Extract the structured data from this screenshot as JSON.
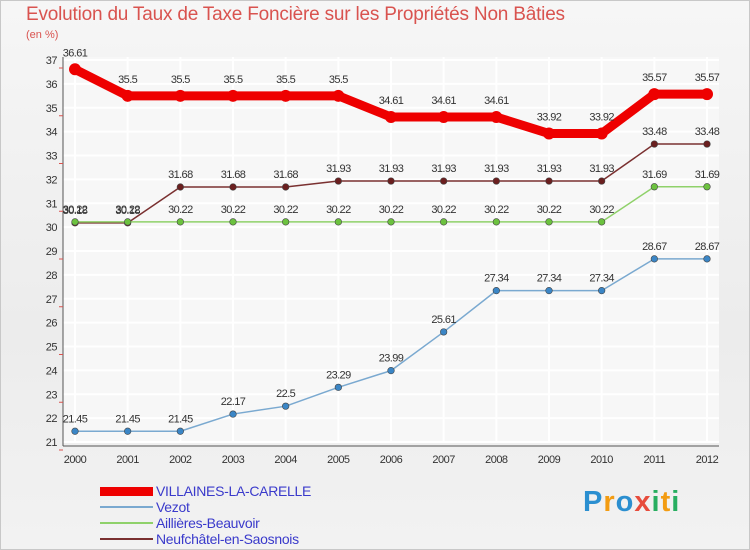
{
  "header": {
    "title": "Evolution du Taux de Taxe Foncière sur les Propriétés Non Bâties",
    "unit": "(en %)"
  },
  "logo": {
    "text": "Proxiti",
    "letters": [
      {
        "ch": "P",
        "color": "#2b8fd0"
      },
      {
        "ch": "r",
        "color": "#f39c12"
      },
      {
        "ch": "o",
        "color": "#2b8fd0"
      },
      {
        "ch": "x",
        "color": "#e74c3c"
      },
      {
        "ch": "i",
        "color": "#27ae60"
      },
      {
        "ch": "t",
        "color": "#f39c12"
      },
      {
        "ch": "i",
        "color": "#27ae60"
      }
    ]
  },
  "chart_data": {
    "type": "line",
    "title": "Evolution du Taux de Taxe Foncière sur les Propriétés Non Bâties",
    "ylabel": "(en %)",
    "xlabel": "",
    "categories": [
      "2000",
      "2001",
      "2002",
      "2003",
      "2004",
      "2005",
      "2006",
      "2007",
      "2008",
      "2009",
      "2010",
      "2011",
      "2012"
    ],
    "ylim": [
      21,
      37
    ],
    "yticks": [
      21,
      22,
      23,
      24,
      25,
      26,
      27,
      28,
      29,
      30,
      31,
      32,
      33,
      34,
      35,
      36,
      37
    ],
    "grid": true,
    "series": [
      {
        "name": "VILLAINES-LA-CARELLE",
        "color": "#ee0000",
        "marker": "#ee0000",
        "weight": "thick",
        "values": [
          36.61,
          35.5,
          35.5,
          35.5,
          35.5,
          35.5,
          34.61,
          34.61,
          34.61,
          33.92,
          33.92,
          35.57,
          35.57
        ],
        "labels": [
          "36.61",
          "35.5",
          "35.5",
          "35.5",
          "35.5",
          "35.5",
          "34.61",
          "34.61",
          "34.61",
          "33.92",
          "33.92",
          "35.57",
          "35.57"
        ]
      },
      {
        "name": "Vezot",
        "color": "#7aa9d0",
        "marker": "#3b86c6",
        "weight": "thin",
        "values": [
          21.45,
          21.45,
          21.45,
          22.17,
          22.5,
          23.29,
          23.99,
          25.61,
          27.34,
          27.34,
          27.34,
          28.67,
          28.67
        ],
        "labels": [
          "21.45",
          "21.45",
          "21.45",
          "22.17",
          "22.5",
          "23.29",
          "23.99",
          "25.61",
          "27.34",
          "27.34",
          "27.34",
          "28.67",
          "28.67"
        ]
      },
      {
        "name": "Aillières-Beauvoir",
        "color": "#8fd16a",
        "marker": "#6cc23f",
        "weight": "thin",
        "values": [
          30.22,
          30.22,
          30.22,
          30.22,
          30.22,
          30.22,
          30.22,
          30.22,
          30.22,
          30.22,
          30.22,
          31.69,
          31.69
        ],
        "labels": [
          "30.22",
          "30.22",
          "30.22",
          "30.22",
          "30.22",
          "30.22",
          "30.22",
          "30.22",
          "30.22",
          "30.22",
          "30.22",
          "31.69",
          "31.69"
        ]
      },
      {
        "name": "Neufchâtel-en-Saosnois",
        "color": "#7a3030",
        "marker": "#6b1f1f",
        "weight": "thin",
        "values": [
          30.18,
          30.18,
          31.68,
          31.68,
          31.68,
          31.93,
          31.93,
          31.93,
          31.93,
          31.93,
          31.93,
          33.48,
          33.48
        ],
        "labels": [
          "30.18",
          "30.18",
          "31.68",
          "31.68",
          "31.68",
          "31.93",
          "31.93",
          "31.93",
          "31.93",
          "31.93",
          "31.93",
          "33.48",
          "33.48"
        ]
      }
    ]
  }
}
